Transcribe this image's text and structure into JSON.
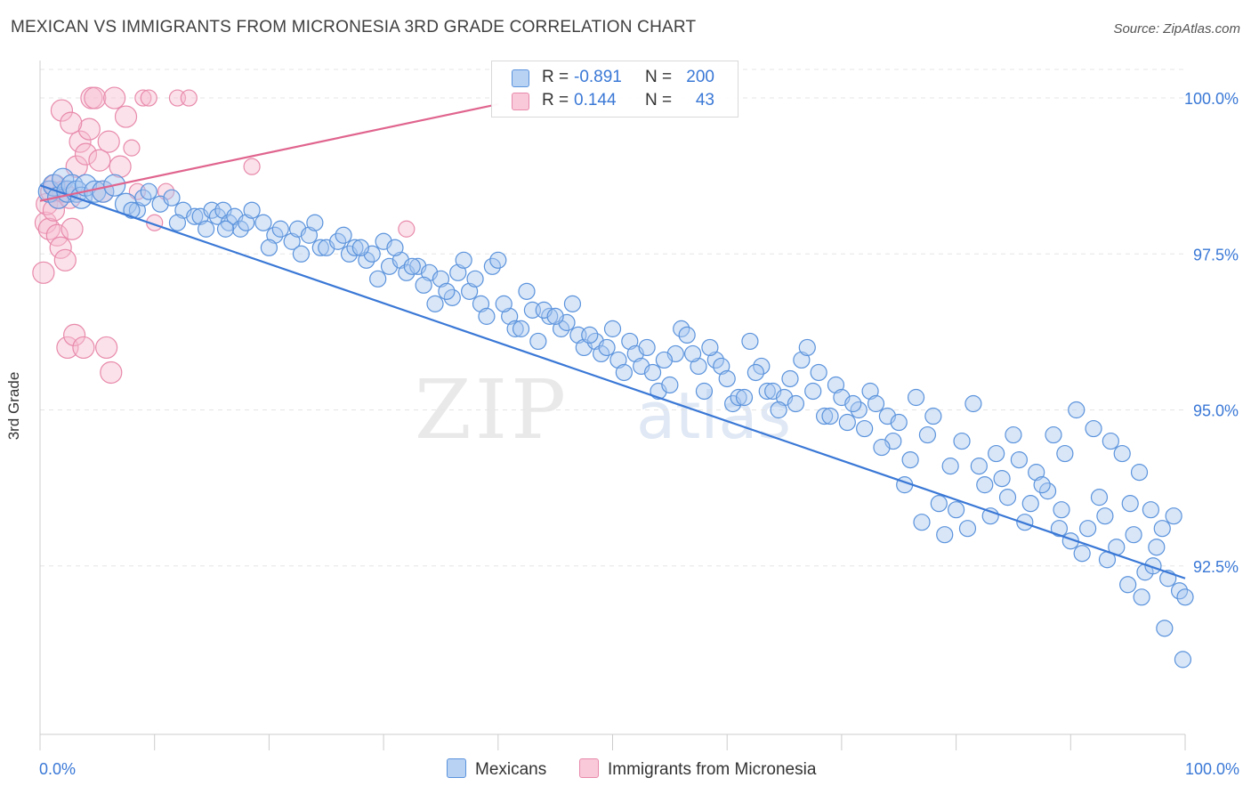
{
  "title": "MEXICAN VS IMMIGRANTS FROM MICRONESIA 3RD GRADE CORRELATION CHART",
  "source": "Source: ZipAtlas.com",
  "watermark": "ZIPatlas",
  "legend": {
    "rows": [
      {
        "r_label": "R =",
        "r_value": "-0.891",
        "n_label": "N =",
        "n_value": "200"
      },
      {
        "r_label": "R =",
        "r_value": "0.144",
        "n_label": "N =",
        "n_value": "43"
      }
    ]
  },
  "bottom_legend": {
    "mexicans": "Mexicans",
    "micronesia": "Immigrants from Micronesia"
  },
  "colors": {
    "blue_fill": "#a9c8f0",
    "blue_stroke": "#5b93dc",
    "blue_line": "#3a78d6",
    "pink_fill": "#f7bcd0",
    "pink_stroke": "#e88aab",
    "pink_line": "#e0648e",
    "grid": "#e5e5e5",
    "tick_text": "#3a78d6"
  },
  "chart_data": {
    "type": "scatter",
    "title": "MEXICAN VS IMMIGRANTS FROM MICRONESIA 3RD GRADE CORRELATION CHART",
    "xlabel": "",
    "ylabel": "3rd Grade",
    "xlim": [
      0,
      100
    ],
    "ylim": [
      89.8,
      100.6
    ],
    "x_tick_labels": [
      "0.0%",
      "100.0%"
    ],
    "y_ticks": [
      92.5,
      95.0,
      97.5,
      100.0
    ],
    "y_tick_labels": [
      "92.5%",
      "95.0%",
      "97.5%",
      "100.0%"
    ],
    "grid": true,
    "legend_position": "top-center",
    "series": [
      {
        "name": "Mexicans",
        "color": "#5b93dc",
        "r": -0.891,
        "n": 200,
        "trend": {
          "x": [
            0,
            100
          ],
          "y": [
            98.6,
            92.3
          ]
        },
        "points": [
          [
            0.8,
            98.5
          ],
          [
            1.2,
            98.6
          ],
          [
            1.6,
            98.4
          ],
          [
            2.0,
            98.7
          ],
          [
            2.4,
            98.5
          ],
          [
            2.8,
            98.6
          ],
          [
            3.2,
            98.5
          ],
          [
            3.6,
            98.4
          ],
          [
            4.0,
            98.6
          ],
          [
            4.8,
            98.5
          ],
          [
            5.5,
            98.5
          ],
          [
            6.5,
            98.6
          ],
          [
            7.5,
            98.3
          ],
          [
            8.5,
            98.2
          ],
          [
            9.0,
            98.4
          ],
          [
            9.5,
            98.5
          ],
          [
            10.5,
            98.3
          ],
          [
            11.5,
            98.4
          ],
          [
            12.5,
            98.2
          ],
          [
            13.5,
            98.1
          ],
          [
            14.0,
            98.1
          ],
          [
            14.5,
            97.9
          ],
          [
            15.0,
            98.2
          ],
          [
            15.5,
            98.1
          ],
          [
            16.0,
            98.2
          ],
          [
            16.5,
            98.0
          ],
          [
            17.0,
            98.1
          ],
          [
            17.5,
            97.9
          ],
          [
            18.0,
            98.0
          ],
          [
            18.5,
            98.2
          ],
          [
            19.5,
            98.0
          ],
          [
            20.5,
            97.8
          ],
          [
            21.0,
            97.9
          ],
          [
            22.0,
            97.7
          ],
          [
            22.5,
            97.9
          ],
          [
            23.5,
            97.8
          ],
          [
            24.5,
            97.6
          ],
          [
            25.0,
            97.6
          ],
          [
            26.0,
            97.7
          ],
          [
            27.0,
            97.5
          ],
          [
            27.5,
            97.6
          ],
          [
            28.5,
            97.4
          ],
          [
            29.0,
            97.5
          ],
          [
            30.0,
            97.7
          ],
          [
            30.5,
            97.3
          ],
          [
            31.5,
            97.4
          ],
          [
            32.0,
            97.2
          ],
          [
            33.0,
            97.3
          ],
          [
            34.0,
            97.2
          ],
          [
            35.0,
            97.1
          ],
          [
            36.0,
            96.8
          ],
          [
            36.5,
            97.2
          ],
          [
            37.5,
            96.9
          ],
          [
            38.5,
            96.7
          ],
          [
            39.5,
            97.3
          ],
          [
            40.0,
            97.4
          ],
          [
            41.0,
            96.5
          ],
          [
            41.5,
            96.3
          ],
          [
            42.0,
            96.3
          ],
          [
            43.0,
            96.6
          ],
          [
            43.5,
            96.1
          ],
          [
            44.5,
            96.5
          ],
          [
            45.5,
            96.3
          ],
          [
            46.0,
            96.4
          ],
          [
            47.0,
            96.2
          ],
          [
            47.5,
            96.0
          ],
          [
            48.5,
            96.1
          ],
          [
            49.0,
            95.9
          ],
          [
            50.5,
            95.8
          ],
          [
            51.5,
            96.1
          ],
          [
            52.0,
            95.9
          ],
          [
            52.5,
            95.7
          ],
          [
            53.5,
            95.6
          ],
          [
            54.0,
            95.3
          ],
          [
            55.0,
            95.4
          ],
          [
            55.5,
            95.9
          ],
          [
            56.0,
            96.3
          ],
          [
            57.5,
            95.7
          ],
          [
            58.0,
            95.3
          ],
          [
            59.0,
            95.8
          ],
          [
            60.5,
            95.1
          ],
          [
            61.0,
            95.2
          ],
          [
            62.0,
            96.1
          ],
          [
            63.0,
            95.7
          ],
          [
            63.5,
            95.3
          ],
          [
            64.0,
            95.3
          ],
          [
            65.0,
            95.2
          ],
          [
            66.0,
            95.1
          ],
          [
            66.5,
            95.8
          ],
          [
            67.0,
            96.0
          ],
          [
            68.0,
            95.6
          ],
          [
            68.5,
            94.9
          ],
          [
            69.5,
            95.4
          ],
          [
            70.0,
            95.2
          ],
          [
            70.5,
            94.8
          ],
          [
            71.5,
            95.0
          ],
          [
            72.5,
            95.3
          ],
          [
            73.0,
            95.1
          ],
          [
            74.0,
            94.9
          ],
          [
            74.5,
            94.5
          ],
          [
            75.0,
            94.8
          ],
          [
            75.5,
            93.8
          ],
          [
            76.5,
            95.2
          ],
          [
            77.0,
            93.2
          ],
          [
            78.0,
            94.9
          ],
          [
            78.5,
            93.5
          ],
          [
            79.0,
            93.0
          ],
          [
            80.0,
            93.4
          ],
          [
            81.0,
            93.1
          ],
          [
            81.5,
            95.1
          ],
          [
            82.5,
            93.8
          ],
          [
            83.0,
            93.3
          ],
          [
            83.5,
            94.3
          ],
          [
            84.0,
            93.9
          ],
          [
            85.0,
            94.6
          ],
          [
            85.5,
            94.2
          ],
          [
            86.5,
            93.5
          ],
          [
            87.0,
            94.0
          ],
          [
            88.0,
            93.7
          ],
          [
            88.5,
            94.6
          ],
          [
            89.0,
            93.1
          ],
          [
            89.5,
            94.3
          ],
          [
            90.0,
            92.9
          ],
          [
            90.5,
            95.0
          ],
          [
            91.0,
            92.7
          ],
          [
            92.0,
            94.7
          ],
          [
            92.5,
            93.6
          ],
          [
            93.0,
            93.3
          ],
          [
            93.5,
            94.5
          ],
          [
            94.0,
            92.8
          ],
          [
            94.5,
            94.3
          ],
          [
            95.0,
            92.2
          ],
          [
            95.5,
            93.0
          ],
          [
            96.0,
            94.0
          ],
          [
            96.5,
            92.4
          ],
          [
            97.0,
            93.4
          ],
          [
            97.5,
            92.8
          ],
          [
            98.0,
            93.1
          ],
          [
            98.5,
            92.3
          ],
          [
            99.0,
            93.3
          ],
          [
            99.5,
            92.1
          ],
          [
            100.0,
            92.0
          ],
          [
            24.0,
            98.0
          ],
          [
            26.5,
            97.8
          ],
          [
            29.5,
            97.1
          ],
          [
            31.0,
            97.6
          ],
          [
            33.5,
            97.0
          ],
          [
            35.5,
            96.9
          ],
          [
            37.0,
            97.4
          ],
          [
            38.0,
            97.1
          ],
          [
            40.5,
            96.7
          ],
          [
            42.5,
            96.9
          ],
          [
            44.0,
            96.6
          ],
          [
            45.0,
            96.5
          ],
          [
            46.5,
            96.7
          ],
          [
            48.0,
            96.2
          ],
          [
            49.5,
            96.0
          ],
          [
            50.0,
            96.3
          ],
          [
            51.0,
            95.6
          ],
          [
            53.0,
            96.0
          ],
          [
            54.5,
            95.8
          ],
          [
            56.5,
            96.2
          ],
          [
            57.0,
            95.9
          ],
          [
            58.5,
            96.0
          ],
          [
            59.5,
            95.7
          ],
          [
            60.0,
            95.5
          ],
          [
            61.5,
            95.2
          ],
          [
            62.5,
            95.6
          ],
          [
            64.5,
            95.0
          ],
          [
            65.5,
            95.5
          ],
          [
            67.5,
            95.3
          ],
          [
            69.0,
            94.9
          ],
          [
            71.0,
            95.1
          ],
          [
            72.0,
            94.7
          ],
          [
            73.5,
            94.4
          ],
          [
            76.0,
            94.2
          ],
          [
            77.5,
            94.6
          ],
          [
            79.5,
            94.1
          ],
          [
            80.5,
            94.5
          ],
          [
            82.0,
            94.1
          ],
          [
            84.5,
            93.6
          ],
          [
            86.0,
            93.2
          ],
          [
            87.5,
            93.8
          ],
          [
            89.2,
            93.4
          ],
          [
            91.5,
            93.1
          ],
          [
            93.2,
            92.6
          ],
          [
            95.2,
            93.5
          ],
          [
            96.2,
            92.0
          ],
          [
            97.2,
            92.5
          ],
          [
            98.2,
            91.5
          ],
          [
            99.8,
            91.0
          ],
          [
            8.0,
            98.2
          ],
          [
            12.0,
            98.0
          ],
          [
            16.2,
            97.9
          ],
          [
            20.0,
            97.6
          ],
          [
            22.8,
            97.5
          ],
          [
            28.0,
            97.6
          ],
          [
            32.5,
            97.3
          ],
          [
            34.5,
            96.7
          ],
          [
            39.0,
            96.5
          ]
        ]
      },
      {
        "name": "Immigrants from Micronesia",
        "color": "#e88aab",
        "r": 0.144,
        "n": 43,
        "trend": {
          "x": [
            0,
            40
          ],
          "y": [
            98.35,
            99.9
          ]
        },
        "points": [
          [
            0.3,
            97.2
          ],
          [
            0.5,
            98.0
          ],
          [
            0.6,
            98.3
          ],
          [
            0.8,
            97.9
          ],
          [
            1.0,
            98.5
          ],
          [
            1.2,
            98.2
          ],
          [
            1.3,
            98.6
          ],
          [
            1.5,
            97.8
          ],
          [
            1.6,
            98.4
          ],
          [
            1.8,
            97.6
          ],
          [
            2.0,
            98.5
          ],
          [
            2.2,
            97.4
          ],
          [
            2.4,
            96.0
          ],
          [
            2.6,
            98.4
          ],
          [
            2.8,
            97.9
          ],
          [
            3.0,
            96.2
          ],
          [
            3.2,
            98.9
          ],
          [
            3.5,
            99.3
          ],
          [
            4.0,
            99.1
          ],
          [
            4.3,
            99.5
          ],
          [
            4.5,
            100.0
          ],
          [
            4.8,
            100.0
          ],
          [
            5.2,
            99.0
          ],
          [
            5.5,
            98.5
          ],
          [
            6.0,
            99.3
          ],
          [
            6.5,
            100.0
          ],
          [
            7.0,
            98.9
          ],
          [
            7.5,
            99.7
          ],
          [
            8.0,
            99.2
          ],
          [
            8.5,
            98.5
          ],
          [
            9.0,
            100.0
          ],
          [
            9.5,
            100.0
          ],
          [
            10.0,
            98.0
          ],
          [
            11.0,
            98.5
          ],
          [
            12.0,
            100.0
          ],
          [
            13.0,
            100.0
          ],
          [
            1.9,
            99.8
          ],
          [
            2.7,
            99.6
          ],
          [
            3.8,
            96.0
          ],
          [
            5.8,
            96.0
          ],
          [
            6.2,
            95.6
          ],
          [
            18.5,
            98.9
          ],
          [
            32.0,
            97.9
          ]
        ]
      }
    ]
  }
}
